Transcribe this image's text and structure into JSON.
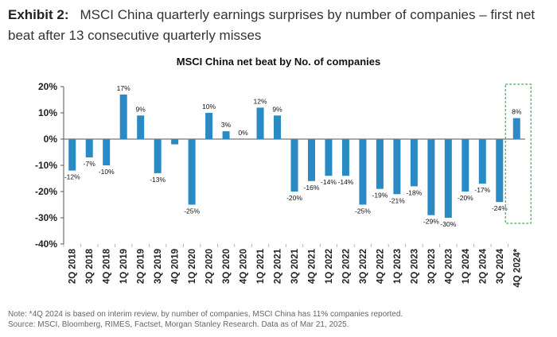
{
  "exhibit": {
    "label": "Exhibit 2:",
    "title": "MSCI China quarterly earnings surprises by number of companies – first net beat after 13 consecutive quarterly misses"
  },
  "chart_data": {
    "type": "bar",
    "title": "MSCI China net beat by No. of companies",
    "categories": [
      "2Q 2018",
      "3Q 2018",
      "4Q 2018",
      "1Q 2019",
      "2Q 2019",
      "3Q 2019",
      "4Q 2019",
      "1Q 2020",
      "2Q 2020",
      "3Q 2020",
      "4Q 2020",
      "1Q 2021",
      "2Q 2021",
      "3Q 2021",
      "4Q 2021",
      "1Q 2022",
      "2Q 2022",
      "3Q 2022",
      "4Q 2022",
      "1Q 2023",
      "2Q 2023",
      "3Q 2023",
      "4Q 2023",
      "1Q 2024",
      "2Q 2024",
      "3Q 2024",
      "4Q 2024*"
    ],
    "values": [
      -12,
      -7,
      -10,
      17,
      9,
      -13,
      -2,
      -25,
      10,
      3,
      0,
      12,
      9,
      -20,
      -16,
      -14,
      -14,
      -25,
      -19,
      -21,
      -18,
      -29,
      -30,
      -20,
      -17,
      -24,
      8
    ],
    "labels": [
      "-12%",
      "-7%",
      "-10%",
      "17%",
      "9%",
      "-13%",
      "",
      "-25%",
      "10%",
      "3%",
      "0%",
      "12%",
      "9%",
      "-20%",
      "-16%",
      "-14%",
      "-14%",
      "-25%",
      "-19%",
      "-21%",
      "-18%",
      "-29%",
      "-30%",
      "-20%",
      "-17%",
      "-24%",
      "8%"
    ],
    "y_ticks": [
      "20%",
      "10%",
      "0%",
      "-10%",
      "-20%",
      "-30%",
      "-40%"
    ],
    "ylim": [
      -40,
      20
    ],
    "bar_color": "#2a8ac4",
    "highlight_color": "#3cb44b",
    "highlight_category": "4Q 2024*",
    "grid": false
  },
  "notes": {
    "line1": "Note: *4Q 2024 is based on interim review, by number of companies, MSCI China has 11% companies reported.",
    "line2": "Source: MSCI, Bloomberg, RIMES, Factset, Morgan Stanley Research. Data as of Mar 21, 2025."
  }
}
